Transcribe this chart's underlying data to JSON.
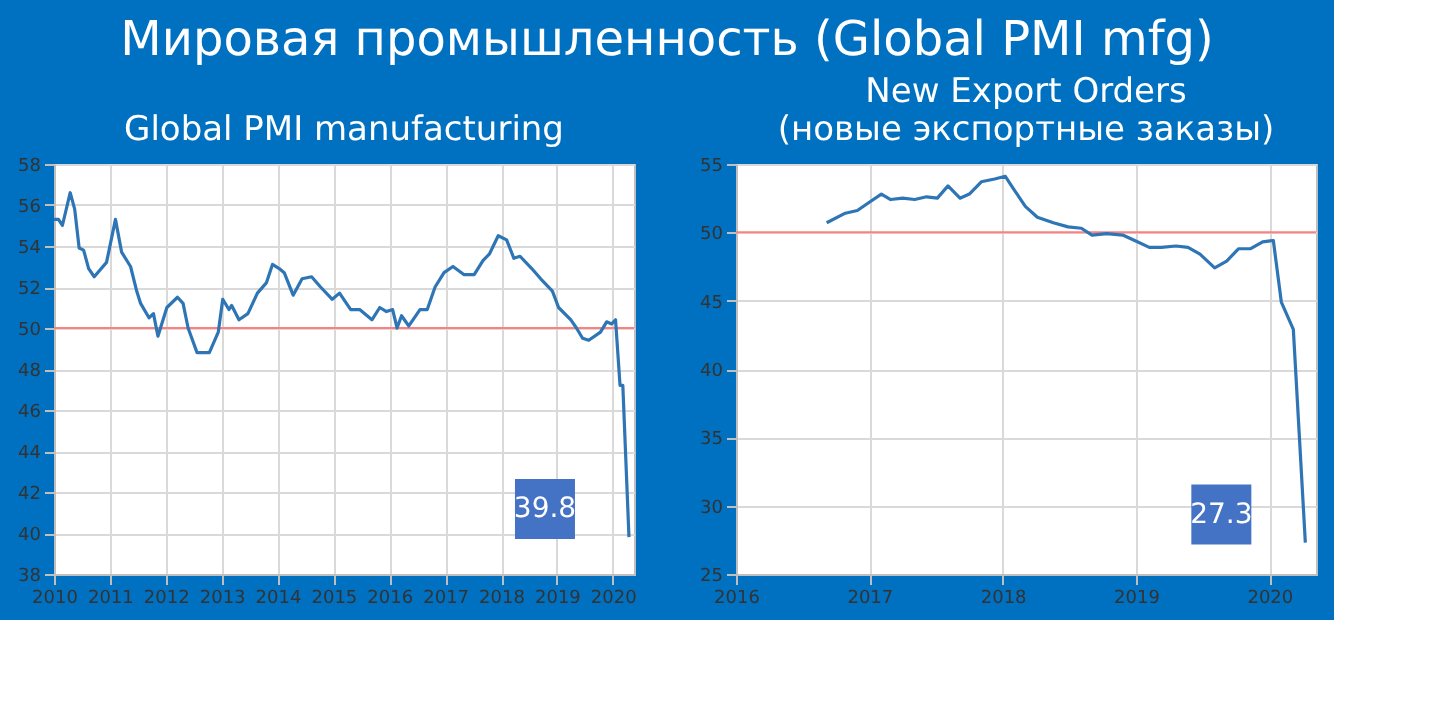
{
  "chart_data": [
    {
      "type": "line",
      "title": "Мировая промышленность (Global PMI mfg)",
      "subtitle": "Global PMI manufacturing",
      "x": [
        2010.0,
        2010.08,
        2010.15,
        2010.29,
        2010.37,
        2010.45,
        2010.53,
        2010.62,
        2010.72,
        2010.94,
        2011.1,
        2011.21,
        2011.37,
        2011.48,
        2011.55,
        2011.7,
        2011.78,
        2011.86,
        2012.02,
        2012.21,
        2012.31,
        2012.4,
        2012.56,
        2012.78,
        2012.94,
        2013.02,
        2013.13,
        2013.18,
        2013.31,
        2013.47,
        2013.64,
        2013.8,
        2013.91,
        2014.03,
        2014.12,
        2014.28,
        2014.44,
        2014.61,
        2014.77,
        2014.98,
        2015.11,
        2015.31,
        2015.47,
        2015.69,
        2015.83,
        2015.95,
        2016.06,
        2016.14,
        2016.22,
        2016.35,
        2016.55,
        2016.68,
        2016.82,
        2016.98,
        2017.14,
        2017.34,
        2017.52,
        2017.68,
        2017.79,
        2017.95,
        2018.1,
        2018.23,
        2018.34,
        2018.55,
        2018.71,
        2018.92,
        2019.03,
        2019.25,
        2019.35,
        2019.46,
        2019.57,
        2019.78,
        2019.89,
        2019.98,
        2020.05,
        2020.13,
        2020.18,
        2020.29
      ],
      "series": [
        {
          "color": "#2e75b6",
          "values": [
            55.3,
            55.3,
            55.0,
            56.6,
            55.8,
            53.9,
            53.8,
            52.9,
            52.5,
            53.2,
            55.3,
            53.7,
            53.0,
            51.8,
            51.2,
            50.5,
            50.7,
            49.6,
            51.0,
            51.5,
            51.2,
            50.0,
            48.8,
            48.8,
            49.8,
            51.4,
            50.9,
            51.1,
            50.4,
            50.7,
            51.7,
            52.2,
            53.1,
            52.9,
            52.7,
            51.6,
            52.4,
            52.5,
            52.0,
            51.4,
            51.7,
            50.9,
            50.9,
            50.4,
            51.0,
            50.8,
            50.9,
            50.0,
            50.6,
            50.1,
            50.9,
            50.9,
            52.0,
            52.7,
            53.0,
            52.6,
            52.6,
            53.3,
            53.6,
            54.5,
            54.3,
            53.4,
            53.5,
            52.9,
            52.4,
            51.8,
            51.0,
            50.4,
            50.0,
            49.5,
            49.4,
            49.8,
            50.3,
            50.2,
            50.4,
            47.2,
            47.2,
            39.8
          ]
        }
      ],
      "xlim": [
        2010,
        2020.38
      ],
      "xticks": [
        2010,
        2011,
        2012,
        2013,
        2014,
        2015,
        2016,
        2017,
        2018,
        2019,
        2020
      ],
      "ylim": [
        38,
        58
      ],
      "yticks": [
        38,
        40,
        42,
        44,
        46,
        48,
        50,
        52,
        54,
        56,
        58
      ],
      "grid": true,
      "ref_lines": [
        {
          "axis": "y",
          "value": 50,
          "color": "#ff7f7f"
        }
      ],
      "annotations": [
        {
          "text": "39.8",
          "x": 2020.29,
          "y": 39.8
        }
      ]
    },
    {
      "type": "line",
      "subtitle": "New Export Orders\n(новые экспортные заказы)",
      "x": [
        2016.68,
        2016.82,
        2016.91,
        2017.0,
        2017.09,
        2017.16,
        2017.25,
        2017.34,
        2017.43,
        2017.51,
        2017.59,
        2017.68,
        2017.75,
        2017.84,
        2017.94,
        2018.02,
        2018.08,
        2018.17,
        2018.26,
        2018.38,
        2018.49,
        2018.59,
        2018.67,
        2018.78,
        2018.9,
        2018.99,
        2019.1,
        2019.19,
        2019.3,
        2019.39,
        2019.48,
        2019.59,
        2019.68,
        2019.77,
        2019.86,
        2019.95,
        2020.03,
        2020.09,
        2020.18,
        2020.27
      ],
      "series": [
        {
          "color": "#2e75b6",
          "values": [
            50.7,
            51.4,
            51.6,
            52.2,
            52.8,
            52.4,
            52.5,
            52.4,
            52.6,
            52.5,
            53.4,
            52.5,
            52.8,
            53.7,
            53.9,
            54.1,
            53.2,
            51.9,
            51.1,
            50.7,
            50.4,
            50.3,
            49.8,
            49.9,
            49.8,
            49.4,
            48.9,
            48.9,
            49.0,
            48.9,
            48.4,
            47.4,
            47.9,
            48.8,
            48.8,
            49.3,
            49.4,
            44.9,
            42.9,
            27.3
          ]
        }
      ],
      "xlim": [
        2016,
        2020.35
      ],
      "xticks": [
        2016,
        2017,
        2018,
        2019,
        2020
      ],
      "ylim": [
        25,
        55
      ],
      "yticks": [
        25,
        30,
        35,
        40,
        45,
        50,
        55
      ],
      "grid": true,
      "ref_lines": [
        {
          "axis": "y",
          "value": 50,
          "color": "#ff7f7f"
        }
      ],
      "annotations": [
        {
          "text": "27.3",
          "x": 2020.27,
          "y": 27.3
        }
      ]
    }
  ]
}
